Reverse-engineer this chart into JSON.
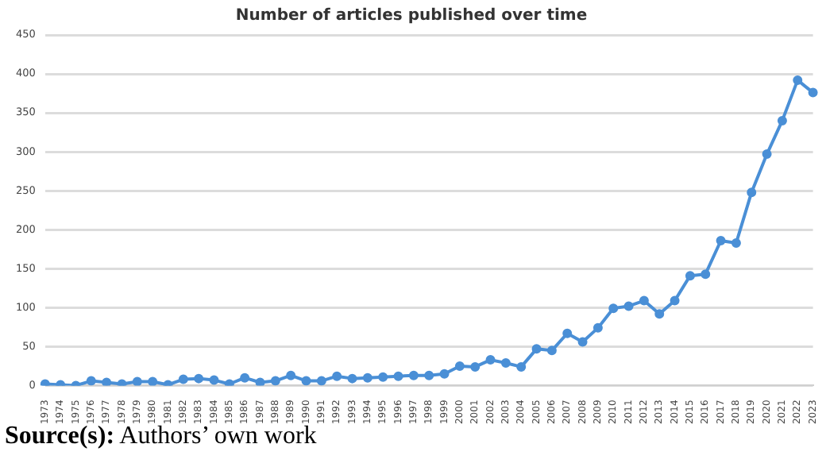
{
  "chart_data": {
    "type": "line",
    "title": "Number of articles published over time",
    "categories": [
      "1973",
      "1974",
      "1975",
      "1976",
      "1977",
      "1978",
      "1979",
      "1980",
      "1981",
      "1982",
      "1983",
      "1984",
      "1985",
      "1986",
      "1987",
      "1988",
      "1989",
      "1990",
      "1991",
      "1992",
      "1993",
      "1994",
      "1995",
      "1996",
      "1997",
      "1998",
      "1999",
      "2000",
      "2001",
      "2002",
      "2003",
      "2004",
      "2005",
      "2006",
      "2007",
      "2008",
      "2009",
      "2010",
      "2011",
      "2012",
      "2013",
      "2014",
      "2015",
      "2016",
      "2017",
      "2018",
      "2019",
      "2020",
      "2021",
      "2022",
      "2023"
    ],
    "series": [
      {
        "color": "#4a8fd6",
        "values": [
          2,
          1,
          0,
          6,
          4,
          2,
          5,
          5,
          1,
          8,
          9,
          7,
          2,
          10,
          4,
          6,
          13,
          6,
          6,
          12,
          9,
          10,
          11,
          12,
          13,
          13,
          15,
          25,
          24,
          33,
          29,
          24,
          47,
          45,
          67,
          56,
          74,
          99,
          102,
          109,
          92,
          109,
          141,
          143,
          186,
          183,
          248,
          297,
          340,
          392,
          376
        ]
      }
    ],
    "ylim": [
      0,
      450
    ],
    "yticks": [
      0,
      50,
      100,
      150,
      200,
      250,
      300,
      350,
      400,
      450
    ],
    "grid": "y",
    "legend": false,
    "marker": "circle",
    "line_style": "solid",
    "annotations": [
      "Source(s): Authors’ own work"
    ]
  }
}
